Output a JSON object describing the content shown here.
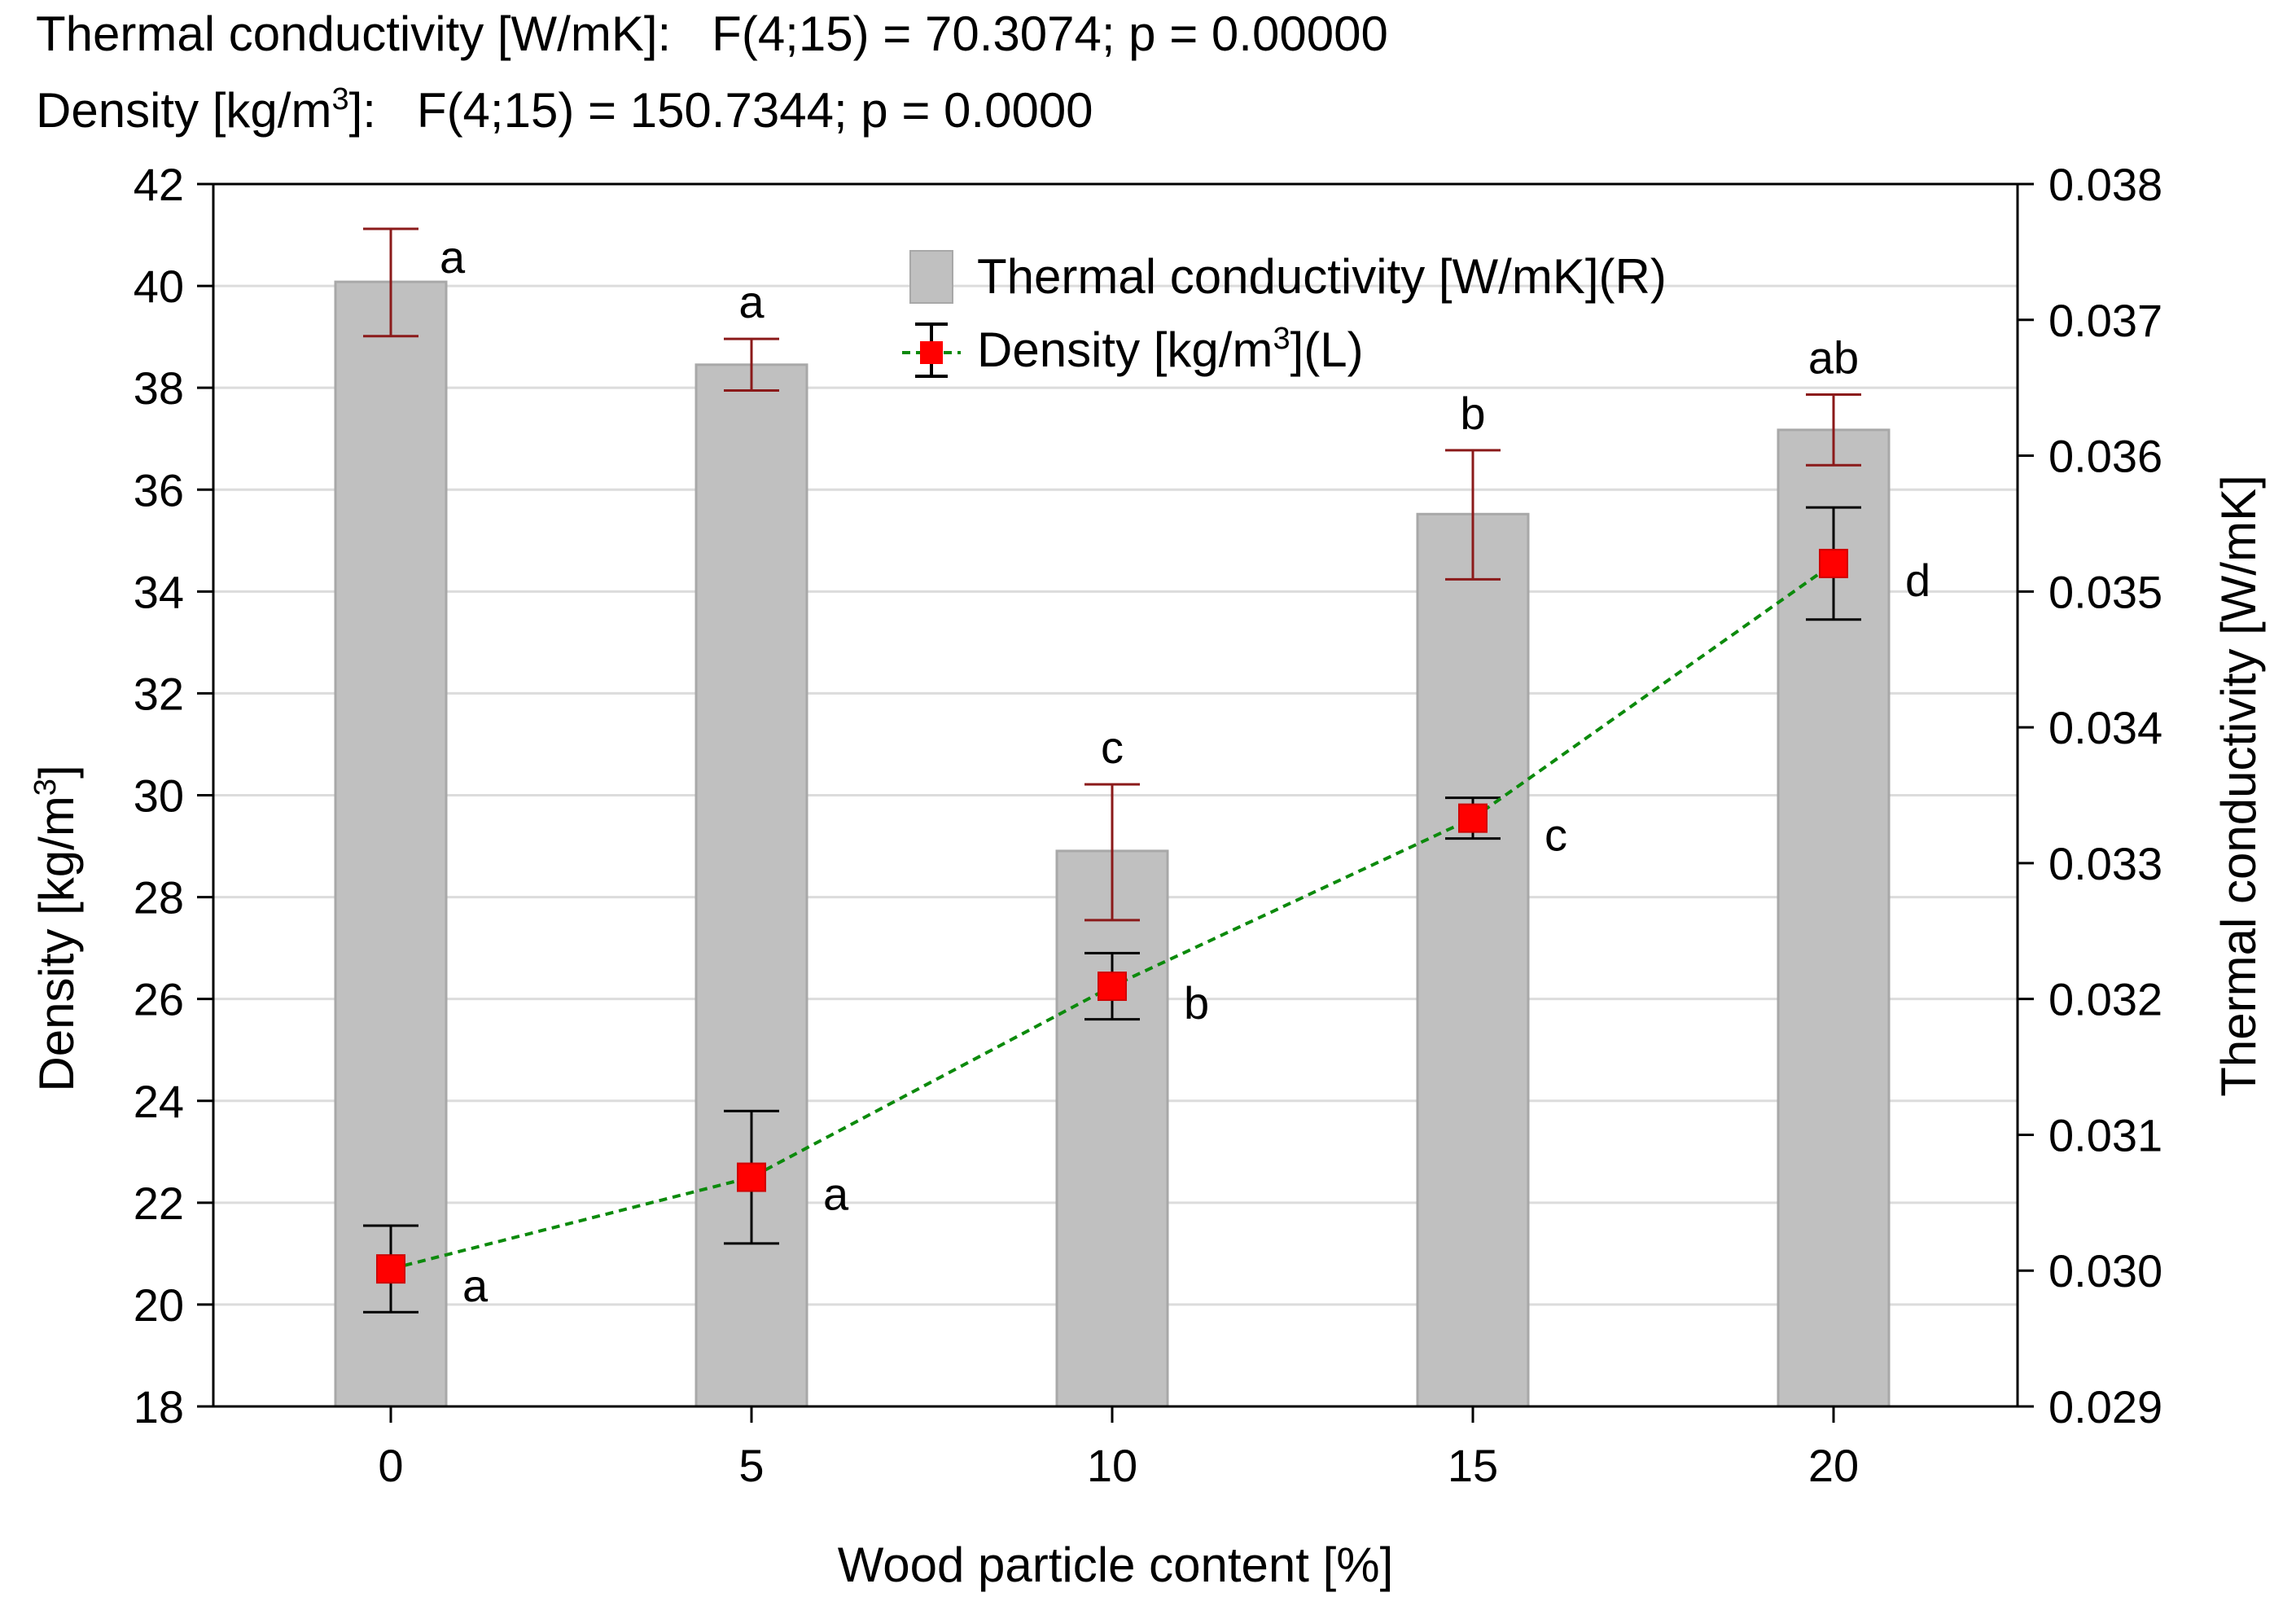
{
  "header": {
    "line1": "Thermal conductivity [W/mK]:   F(4;15) = 70.3074; p = 0.00000",
    "line2_prefix": "Density [kg/m",
    "line2_sup": "3",
    "line2_suffix": "]:   F(4;15) = 150.7344; p = 0.0000"
  },
  "chart_data": {
    "type": "bar",
    "x": [
      0,
      5,
      10,
      15,
      20
    ],
    "xlabel": "Wood particle content [%]",
    "ylabel_left": {
      "text": "Density [kg/m",
      "sup": "3",
      "suffix": "]"
    },
    "ylabel_right": "Thermal conductivity [W/mK]",
    "ylim_left": [
      18,
      42
    ],
    "ylim_right": [
      0.029,
      0.038
    ],
    "yticks_left": [
      "18",
      "20",
      "22",
      "24",
      "26",
      "28",
      "30",
      "32",
      "34",
      "36",
      "38",
      "40",
      "42"
    ],
    "yticks_right": [
      "0.029",
      "0.030",
      "0.031",
      "0.032",
      "0.033",
      "0.034",
      "0.035",
      "0.036",
      "0.037",
      "0.038"
    ],
    "grid": true,
    "legend_position": "top-center",
    "series": [
      {
        "name": "Thermal conductivity [W/mK](R)",
        "kind": "bar",
        "axis": "right",
        "color": "#c0c0c0",
        "values": [
          0.03728,
          0.03667,
          0.03309,
          0.03557,
          0.03619
        ],
        "err_low": [
          0.03688,
          0.03648,
          0.03258,
          0.03509,
          0.03593
        ],
        "err_high": [
          0.03767,
          0.03686,
          0.03358,
          0.03604,
          0.03645
        ],
        "err_color": "#8b1a1a",
        "letters": [
          "a",
          "a",
          "c",
          "b",
          "ab"
        ]
      },
      {
        "name_prefix": "Density [kg/m",
        "name_sup": "3",
        "name_suffix": "](L)",
        "kind": "line-points",
        "axis": "left",
        "marker_color": "#ff0000",
        "line_color": "#0c8a0c",
        "values": [
          20.7,
          22.5,
          26.25,
          29.55,
          34.55
        ],
        "err_low": [
          19.85,
          21.2,
          25.6,
          29.15,
          33.45
        ],
        "err_high": [
          21.55,
          23.8,
          26.9,
          29.95,
          35.65
        ],
        "err_color": "#000000",
        "letters": [
          "a",
          "a",
          "b",
          "c",
          "d"
        ]
      }
    ]
  }
}
